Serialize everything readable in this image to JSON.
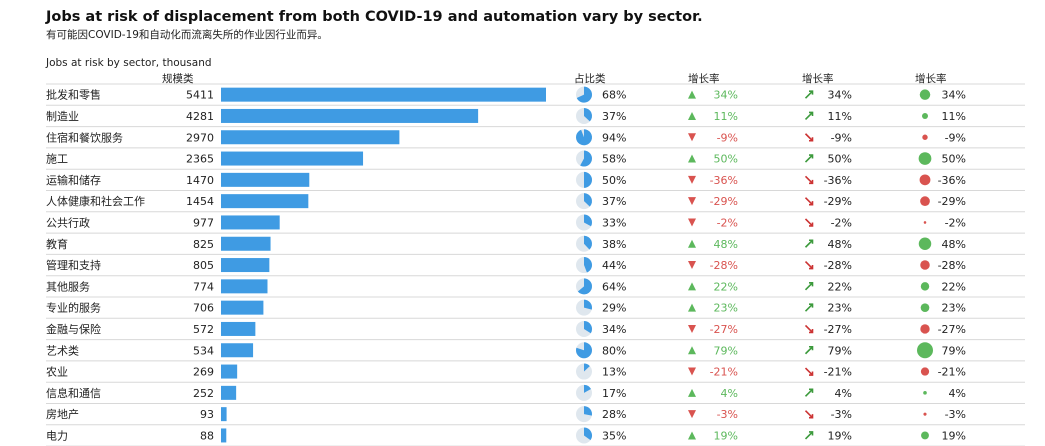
{
  "title": "Jobs at risk of displacement from both COVID-19 and automation vary by sector.",
  "subtitle": "有可能因COVID-19和自动化而流离失所的作业因行业而异。",
  "caption": "Jobs at risk by sector, thousand",
  "headers": {
    "size": "规模类",
    "share": "占比类",
    "growth1": "增长率",
    "growth2": "增长率",
    "growth3": "增长率"
  },
  "colors": {
    "bar": "#3f9be3",
    "pie_fill": "#3f9be3",
    "pie_bg": "#dfe7ee",
    "positive": "#5cb85c",
    "negative": "#d9534f",
    "arrow_positive": "#3c9a3c",
    "arrow_negative": "#cc3333",
    "divider": "#d8d8d8"
  },
  "chart_data": {
    "type": "table",
    "title": "Jobs at risk of displacement from both COVID-19 and automation vary by sector.",
    "subtitle": "有可能因COVID-19和自动化而流离失所的作业因行业而异。",
    "columns": [
      "",
      "规模类",
      "占比类",
      "增长率",
      "增长率",
      "增长率"
    ],
    "value_unit": "thousand",
    "bar_max": 5411,
    "rows": [
      {
        "sector": "批发和零售",
        "value": 5411,
        "share": 68,
        "growth": 34
      },
      {
        "sector": "制造业",
        "value": 4281,
        "share": 37,
        "growth": 11
      },
      {
        "sector": "住宿和餐饮服务",
        "value": 2970,
        "share": 94,
        "growth": -9
      },
      {
        "sector": "施工",
        "value": 2365,
        "share": 58,
        "growth": 50
      },
      {
        "sector": "运输和储存",
        "value": 1470,
        "share": 50,
        "growth": -36
      },
      {
        "sector": "人体健康和社会工作",
        "value": 1454,
        "share": 37,
        "growth": -29
      },
      {
        "sector": "公共行政",
        "value": 977,
        "share": 33,
        "growth": -2
      },
      {
        "sector": "教育",
        "value": 825,
        "share": 38,
        "growth": 48
      },
      {
        "sector": "管理和支持",
        "value": 805,
        "share": 44,
        "growth": -28
      },
      {
        "sector": "其他服务",
        "value": 774,
        "share": 64,
        "growth": 22
      },
      {
        "sector": "专业的服务",
        "value": 706,
        "share": 29,
        "growth": 23
      },
      {
        "sector": "金融与保险",
        "value": 572,
        "share": 34,
        "growth": -27
      },
      {
        "sector": "艺术类",
        "value": 534,
        "share": 80,
        "growth": 79
      },
      {
        "sector": "农业",
        "value": 269,
        "share": 13,
        "growth": -21
      },
      {
        "sector": "信息和通信",
        "value": 252,
        "share": 17,
        "growth": 4
      },
      {
        "sector": "房地产",
        "value": 93,
        "share": 28,
        "growth": -3
      },
      {
        "sector": "电力",
        "value": 88,
        "share": 35,
        "growth": 19
      }
    ]
  }
}
